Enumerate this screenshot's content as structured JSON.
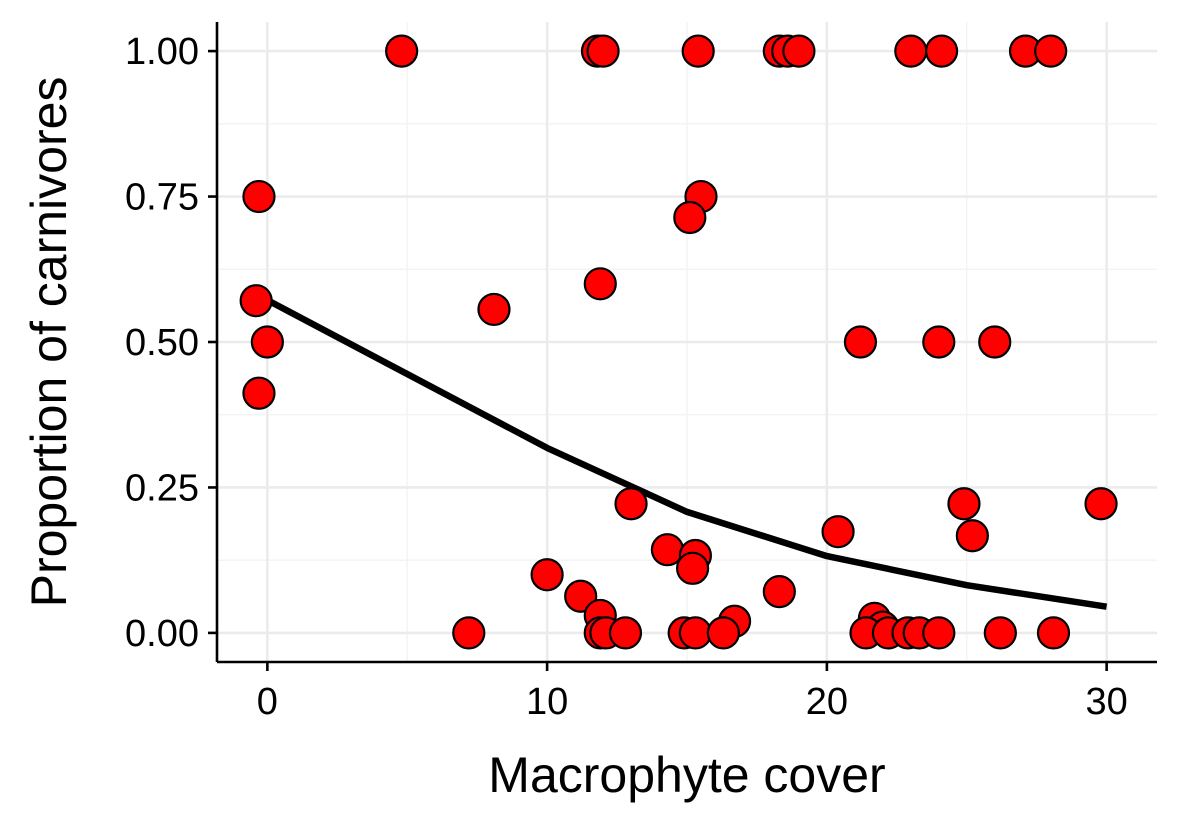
{
  "chart_data": {
    "type": "scatter",
    "xlabel": "Macrophyte cover",
    "ylabel": "Proportion of carnivores",
    "xlim": [
      -1.8,
      31.8
    ],
    "ylim": [
      -0.05,
      1.05
    ],
    "x_ticks": [
      0,
      10,
      20,
      30
    ],
    "x_tick_labels": [
      "0",
      "10",
      "20",
      "30"
    ],
    "y_ticks": [
      0,
      0.25,
      0.5,
      0.75,
      1.0
    ],
    "y_tick_labels": [
      "0.00",
      "0.25",
      "0.50",
      "0.75",
      "1.00"
    ],
    "grid": true,
    "legend": "none",
    "point_fill": "#ff0000",
    "point_stroke": "#000000",
    "line_color": "#000000",
    "points": [
      {
        "x": 4.8,
        "y": 1.0
      },
      {
        "x": 11.8,
        "y": 1.0
      },
      {
        "x": 12.0,
        "y": 1.0
      },
      {
        "x": 15.4,
        "y": 1.0
      },
      {
        "x": 18.3,
        "y": 1.0
      },
      {
        "x": 18.6,
        "y": 1.0
      },
      {
        "x": 19.0,
        "y": 1.0
      },
      {
        "x": 23.0,
        "y": 1.0
      },
      {
        "x": 24.1,
        "y": 1.0
      },
      {
        "x": 27.1,
        "y": 1.0
      },
      {
        "x": 28.0,
        "y": 1.0
      },
      {
        "x": -0.3,
        "y": 0.75
      },
      {
        "x": 15.5,
        "y": 0.75
      },
      {
        "x": 15.1,
        "y": 0.714
      },
      {
        "x": 11.9,
        "y": 0.6
      },
      {
        "x": -0.4,
        "y": 0.571
      },
      {
        "x": 8.1,
        "y": 0.556
      },
      {
        "x": 0.0,
        "y": 0.5
      },
      {
        "x": 21.2,
        "y": 0.5
      },
      {
        "x": 24.0,
        "y": 0.5
      },
      {
        "x": 26.0,
        "y": 0.5
      },
      {
        "x": -0.3,
        "y": 0.412
      },
      {
        "x": 13.0,
        "y": 0.222
      },
      {
        "x": 24.9,
        "y": 0.222
      },
      {
        "x": 29.8,
        "y": 0.222
      },
      {
        "x": 20.4,
        "y": 0.174
      },
      {
        "x": 25.2,
        "y": 0.167
      },
      {
        "x": 14.3,
        "y": 0.143
      },
      {
        "x": 15.3,
        "y": 0.133
      },
      {
        "x": 15.2,
        "y": 0.111
      },
      {
        "x": 10.0,
        "y": 0.1
      },
      {
        "x": 18.3,
        "y": 0.071
      },
      {
        "x": 11.2,
        "y": 0.063
      },
      {
        "x": 11.9,
        "y": 0.03
      },
      {
        "x": 21.7,
        "y": 0.025
      },
      {
        "x": 16.7,
        "y": 0.02
      },
      {
        "x": 22.0,
        "y": 0.01
      },
      {
        "x": 7.2,
        "y": 0.0
      },
      {
        "x": 11.9,
        "y": 0.0
      },
      {
        "x": 12.1,
        "y": 0.0
      },
      {
        "x": 12.8,
        "y": 0.0
      },
      {
        "x": 14.9,
        "y": 0.0
      },
      {
        "x": 15.3,
        "y": 0.0
      },
      {
        "x": 16.3,
        "y": 0.0
      },
      {
        "x": 21.4,
        "y": 0.0
      },
      {
        "x": 22.2,
        "y": 0.0
      },
      {
        "x": 22.9,
        "y": 0.0
      },
      {
        "x": 23.3,
        "y": 0.0
      },
      {
        "x": 24.0,
        "y": 0.0
      },
      {
        "x": 26.2,
        "y": 0.0
      },
      {
        "x": 28.1,
        "y": 0.0
      }
    ],
    "fit_line": {
      "x": [
        0,
        5,
        10,
        15,
        20,
        25,
        30
      ],
      "y": [
        0.572,
        0.445,
        0.318,
        0.208,
        0.132,
        0.082,
        0.045
      ]
    }
  }
}
